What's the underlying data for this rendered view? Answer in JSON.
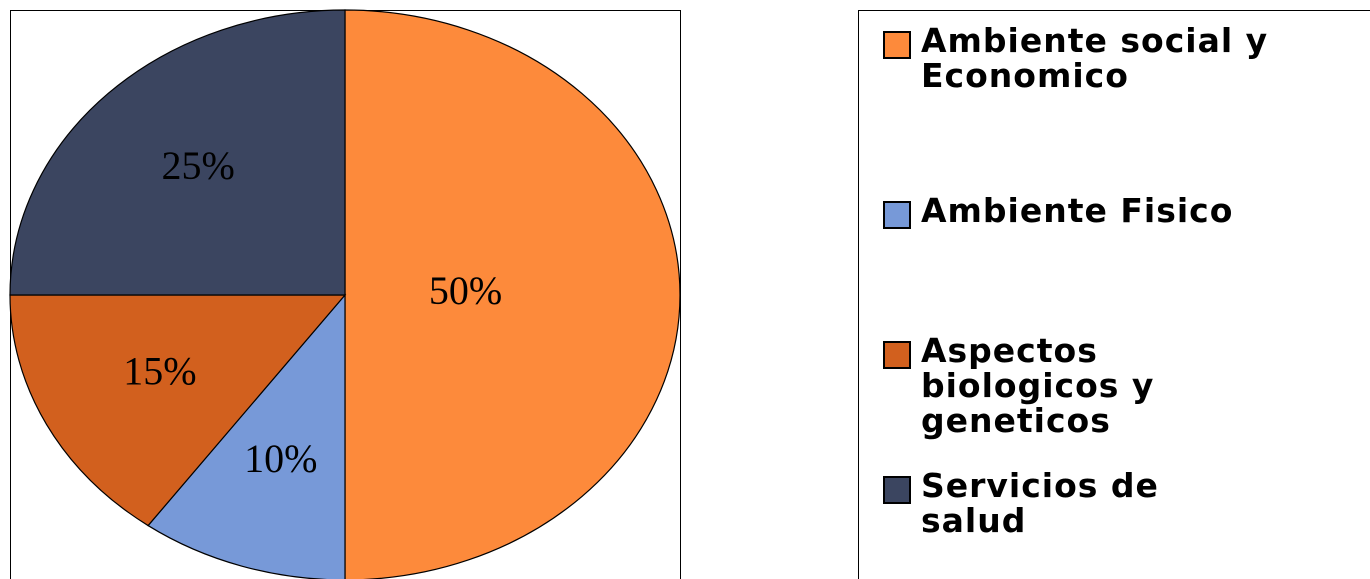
{
  "chart_data": {
    "type": "pie",
    "categories": [
      "Ambiente social y Economico",
      "Ambiente Fisico",
      "Aspectos biologicos y geneticos",
      "Servicios de salud"
    ],
    "values": [
      50,
      10,
      15,
      25
    ],
    "value_labels": [
      "50%",
      "10%",
      "15%",
      "25%"
    ],
    "colors": [
      "#fd8a3b",
      "#7799d8",
      "#d2601e",
      "#3b4560"
    ]
  }
}
